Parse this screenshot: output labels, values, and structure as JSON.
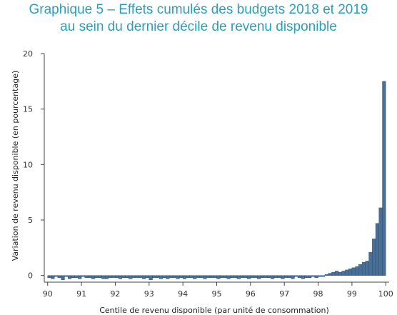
{
  "title_line1": "Graphique 5 – Effets cumulés des budgets 2018 et 2019",
  "title_line2": "au sein du dernier décile de revenu disponible",
  "chart_data": {
    "type": "bar",
    "title": "Graphique 5 – Effets cumulés des budgets 2018 et 2019 au sein du dernier décile de revenu disponible",
    "xlabel": "Centile de revenu disponible (par unité de consommation)",
    "ylabel": "Variation de revenu disponible (en pourcentage)",
    "xlim": [
      89.9,
      100.1
    ],
    "ylim": [
      -0.6,
      20
    ],
    "xticks": [
      "90",
      "91",
      "92",
      "93",
      "94",
      "95",
      "96",
      "97",
      "98",
      "99",
      "100"
    ],
    "yticks": [
      "0",
      "5",
      "10",
      "15",
      "20"
    ],
    "grid": false,
    "bar_width": 0.1,
    "x": [
      90.0,
      90.1,
      90.2,
      90.3,
      90.4,
      90.5,
      90.6,
      90.7,
      90.8,
      90.9,
      91.0,
      91.1,
      91.2,
      91.3,
      91.4,
      91.5,
      91.6,
      91.7,
      91.8,
      91.9,
      92.0,
      92.1,
      92.2,
      92.3,
      92.4,
      92.5,
      92.6,
      92.7,
      92.8,
      92.9,
      93.0,
      93.1,
      93.2,
      93.3,
      93.4,
      93.5,
      93.6,
      93.7,
      93.8,
      93.9,
      94.0,
      94.1,
      94.2,
      94.3,
      94.4,
      94.5,
      94.6,
      94.7,
      94.8,
      94.9,
      95.0,
      95.1,
      95.2,
      95.3,
      95.4,
      95.5,
      95.6,
      95.7,
      95.8,
      95.9,
      96.0,
      96.1,
      96.2,
      96.3,
      96.4,
      96.5,
      96.6,
      96.7,
      96.8,
      96.9,
      97.0,
      97.1,
      97.2,
      97.3,
      97.4,
      97.5,
      97.6,
      97.7,
      97.8,
      97.9,
      98.0,
      98.1,
      98.2,
      98.3,
      98.4,
      98.5,
      98.6,
      98.7,
      98.8,
      98.9,
      99.0,
      99.1,
      99.2,
      99.3,
      99.4,
      99.5,
      99.6,
      99.7,
      99.8,
      99.9
    ],
    "values": [
      -0.2,
      -0.3,
      -0.1,
      -0.2,
      -0.4,
      -0.1,
      -0.3,
      -0.2,
      -0.2,
      -0.3,
      -0.1,
      -0.2,
      -0.2,
      -0.3,
      -0.2,
      -0.2,
      -0.3,
      -0.3,
      -0.2,
      -0.2,
      -0.2,
      -0.3,
      -0.2,
      -0.2,
      -0.3,
      -0.2,
      -0.2,
      -0.2,
      -0.3,
      -0.2,
      -0.4,
      -0.2,
      -0.2,
      -0.3,
      -0.2,
      -0.3,
      -0.2,
      -0.2,
      -0.3,
      -0.2,
      -0.3,
      -0.2,
      -0.2,
      -0.3,
      -0.2,
      -0.2,
      -0.3,
      -0.2,
      -0.2,
      -0.2,
      -0.3,
      -0.2,
      -0.2,
      -0.3,
      -0.2,
      -0.2,
      -0.3,
      -0.2,
      -0.2,
      -0.3,
      -0.2,
      -0.2,
      -0.3,
      -0.2,
      -0.2,
      -0.2,
      -0.3,
      -0.2,
      -0.2,
      -0.3,
      -0.2,
      -0.2,
      -0.3,
      -0.1,
      -0.2,
      -0.3,
      -0.2,
      -0.2,
      -0.1,
      -0.2,
      -0.1,
      -0.1,
      0.1,
      0.2,
      0.3,
      0.4,
      0.3,
      0.4,
      0.5,
      0.6,
      0.7,
      0.8,
      1.0,
      1.2,
      1.3,
      2.1,
      3.3,
      4.7,
      6.1,
      17.5
    ]
  },
  "colors": {
    "title": "#2aa0b8",
    "bar_fill": "#4a6f96",
    "bar_stroke": "#2c4a6a",
    "axis": "#444444"
  }
}
